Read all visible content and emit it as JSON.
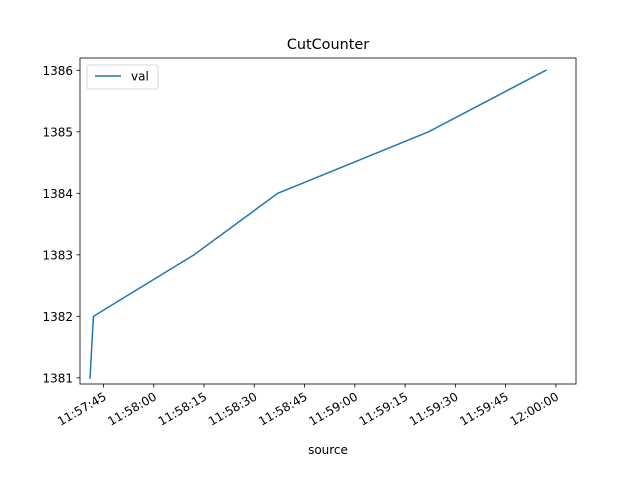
{
  "chart_data": {
    "type": "line",
    "title": "CutCounter",
    "xlabel": "source",
    "ylabel": "",
    "x_is_time": true,
    "xlim": [
      "11:57:38",
      "12:00:06"
    ],
    "ylim": [
      1380.9,
      1386.2
    ],
    "x_ticks": [
      "11:57:45",
      "11:58:00",
      "11:58:15",
      "11:58:30",
      "11:58:45",
      "11:59:00",
      "11:59:15",
      "11:59:30",
      "11:59:45",
      "12:00:00"
    ],
    "y_ticks": [
      1381,
      1382,
      1383,
      1384,
      1385,
      1386
    ],
    "legend": {
      "position": "top-left",
      "entries": [
        "val"
      ]
    },
    "grid": false,
    "series": [
      {
        "name": "val",
        "color": "#1f77b4",
        "x": [
          "11:57:41",
          "11:57:42",
          "11:58:12",
          "11:58:37",
          "11:59:22",
          "11:59:57"
        ],
        "values": [
          1381,
          1382,
          1383,
          1384,
          1385,
          1386
        ]
      }
    ]
  }
}
